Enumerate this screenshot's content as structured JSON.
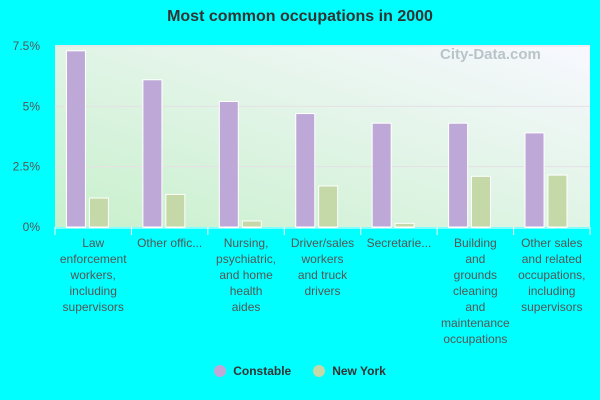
{
  "chart_data": {
    "type": "bar",
    "title": "Most common occupations in 2000",
    "categories": [
      [
        "Law",
        "enforcement",
        "workers,",
        "including",
        "supervisors"
      ],
      [
        "Other offic..."
      ],
      [
        "Nursing,",
        "psychiatric,",
        "and home",
        "health",
        "aides"
      ],
      [
        "Driver/sales",
        "workers",
        "and truck",
        "drivers"
      ],
      [
        "Secretarie..."
      ],
      [
        "Building",
        "and",
        "grounds",
        "cleaning",
        "and",
        "maintenance",
        "occupations"
      ],
      [
        "Other sales",
        "and related",
        "occupations,",
        "including",
        "supervisors"
      ]
    ],
    "series": [
      {
        "name": "Constable",
        "color": "#bea8d8",
        "values": [
          7.3,
          6.1,
          5.2,
          4.7,
          4.3,
          4.3,
          3.9
        ]
      },
      {
        "name": "New York",
        "color": "#c4d8a8",
        "values": [
          1.2,
          1.35,
          0.25,
          1.7,
          0.15,
          2.1,
          2.15
        ]
      }
    ],
    "yticks": [
      "0%",
      "2.5%",
      "5%",
      "7.5%"
    ],
    "ytick_values": [
      0,
      2.5,
      5,
      7.5
    ],
    "ylim": [
      0,
      7.5
    ],
    "grid": true,
    "legend": "bottom",
    "watermark": "City-Data.com"
  }
}
